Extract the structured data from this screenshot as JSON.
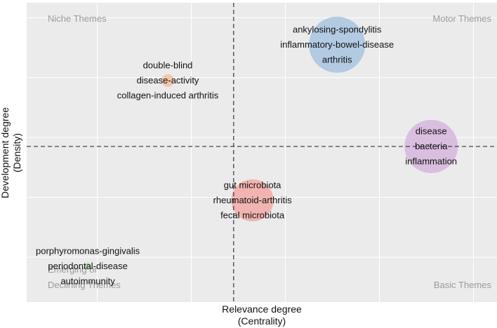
{
  "chart_data": {
    "type": "scatter",
    "title": "",
    "xlabel": "Relevance degree",
    "xlabel_sub": "(Centrality)",
    "ylabel": "Development degree",
    "ylabel_sub": "(Density)",
    "xlim": [
      0,
      10
    ],
    "ylim": [
      0,
      10
    ],
    "x_divider": 4.4,
    "y_divider": 5.2,
    "grid": true,
    "legend": "none",
    "quadrants": {
      "top_left": "Niche Themes",
      "top_right": "Motor Themes",
      "bottom_left_line1": "Emerging or",
      "bottom_left_line2": "Declining Themes",
      "bottom_right": "Basic Themes"
    },
    "clusters": [
      {
        "id": "c1",
        "x": 6.6,
        "y": 8.6,
        "size": 40,
        "color": "#a8c4e0",
        "labels": [
          "ankylosing-spondylitis",
          "inflammatory-bowel-disease",
          "arthritis"
        ]
      },
      {
        "id": "c2",
        "x": 3.0,
        "y": 7.4,
        "size": 9,
        "color": "#f5bfa0",
        "labels": [
          "double-blind",
          "disease-activity",
          "collagen-induced arthritis"
        ]
      },
      {
        "id": "c3",
        "x": 8.6,
        "y": 5.2,
        "size": 38,
        "color": "#d7b6de",
        "labels": [
          "disease",
          "bacteria",
          "inflammation"
        ]
      },
      {
        "id": "c4",
        "x": 4.8,
        "y": 3.4,
        "size": 30,
        "color": "#f2aaa6",
        "labels": [
          "gut microbiota",
          "rheumatoid-arthritis",
          "fecal microbiota"
        ]
      },
      {
        "id": "c5",
        "x": 1.3,
        "y": 1.2,
        "size": 5,
        "color": "#b5dcb0",
        "labels": [
          "porphyromonas-gingivalis",
          "periodontal-disease",
          "autoimmunity"
        ]
      }
    ]
  }
}
